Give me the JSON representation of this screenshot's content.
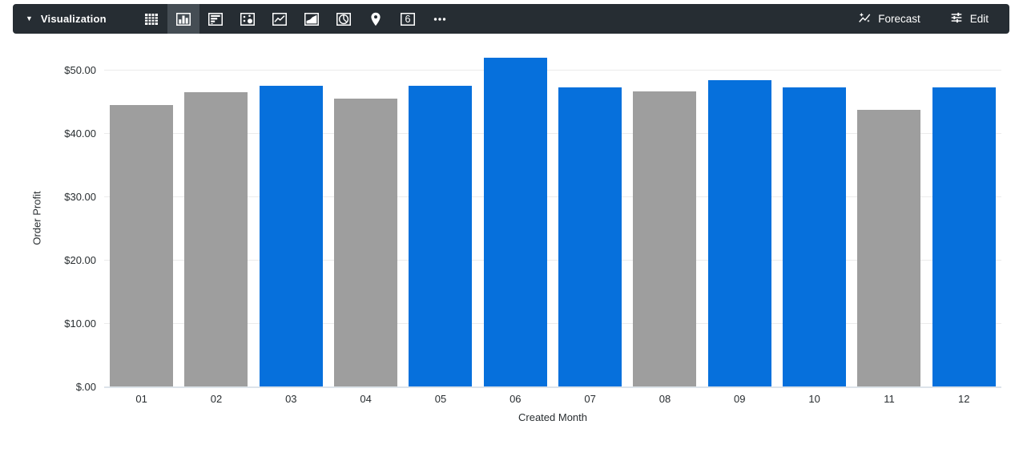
{
  "toolbar": {
    "caret_glyph": "▼",
    "title": "Visualization",
    "chart_type_icons": [
      {
        "name": "table",
        "selected": false
      },
      {
        "name": "column-chart",
        "selected": true
      },
      {
        "name": "bar-chart",
        "selected": false
      },
      {
        "name": "scatter-plot",
        "selected": false
      },
      {
        "name": "line-chart",
        "selected": false
      },
      {
        "name": "area-chart",
        "selected": false
      },
      {
        "name": "pie-chart",
        "selected": false
      },
      {
        "name": "map",
        "selected": false
      },
      {
        "name": "single-value",
        "selected": false
      },
      {
        "name": "more-options",
        "selected": false
      }
    ],
    "single_value_glyph": "6",
    "forecast_label": "Forecast",
    "edit_label": "Edit"
  },
  "colors": {
    "toolbar_bg": "#262d33",
    "toolbar_selected_bg": "#454d54",
    "bar_blue": "#0670dc",
    "bar_gray": "#9e9e9e",
    "gridline": "#ebebeb",
    "axis_line": "#dde4ea"
  },
  "chart_data": {
    "type": "bar",
    "title": "",
    "xlabel": "Created Month",
    "ylabel": "Order Profit",
    "categories": [
      "01",
      "02",
      "03",
      "04",
      "05",
      "06",
      "07",
      "08",
      "09",
      "10",
      "11",
      "12"
    ],
    "values": [
      44.5,
      46.5,
      47.6,
      45.5,
      47.6,
      52.0,
      47.3,
      46.7,
      48.5,
      47.3,
      43.7,
      47.3
    ],
    "bar_colors": [
      "gray",
      "gray",
      "blue",
      "gray",
      "blue",
      "blue",
      "blue",
      "gray",
      "blue",
      "blue",
      "gray",
      "blue"
    ],
    "y_ticks": [
      "$.00",
      "$10.00",
      "$20.00",
      "$30.00",
      "$40.00",
      "$50.00"
    ],
    "y_tick_values": [
      0,
      10,
      20,
      30,
      40,
      50
    ],
    "ylim": [
      0,
      53.5
    ],
    "grid": true,
    "legend": "none"
  }
}
